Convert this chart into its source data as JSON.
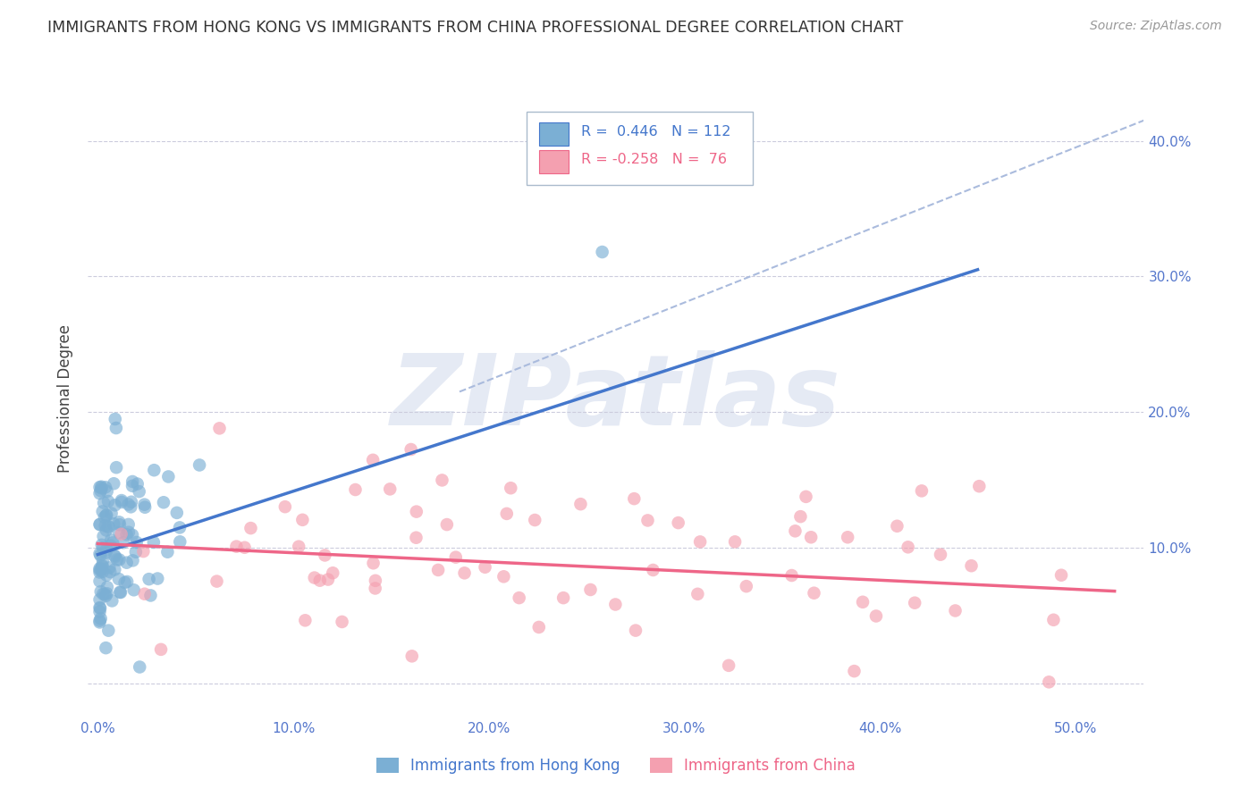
{
  "title": "IMMIGRANTS FROM HONG KONG VS IMMIGRANTS FROM CHINA PROFESSIONAL DEGREE CORRELATION CHART",
  "source": "Source: ZipAtlas.com",
  "ylabel": "Professional Degree",
  "xlim": [
    -0.005,
    0.535
  ],
  "ylim": [
    -0.025,
    0.445
  ],
  "hk_R": 0.446,
  "hk_N": 112,
  "china_R": -0.258,
  "china_N": 76,
  "hk_color": "#7BAFD4",
  "china_color": "#F4A0B0",
  "hk_line_color": "#4477CC",
  "china_line_color": "#EE6688",
  "hk_line_x": [
    0.0,
    0.45
  ],
  "hk_line_y": [
    0.095,
    0.305
  ],
  "china_line_x": [
    0.0,
    0.52
  ],
  "china_line_y": [
    0.103,
    0.068
  ],
  "dash_line_x": [
    0.185,
    0.535
  ],
  "dash_line_y": [
    0.215,
    0.415
  ],
  "dash_color": "#AABBDD",
  "watermark": "ZIPatlas",
  "watermark_color": "#AABBDD",
  "legend_label_hk": "Immigrants from Hong Kong",
  "legend_label_china": "Immigrants from China",
  "background_color": "#FFFFFF",
  "grid_color": "#CCCCDD",
  "title_color": "#333333",
  "tick_color": "#5577CC",
  "x_tick_vals": [
    0.0,
    0.1,
    0.2,
    0.3,
    0.4,
    0.5
  ],
  "x_tick_labels": [
    "0.0%",
    "10.0%",
    "20.0%",
    "30.0%",
    "40.0%",
    "50.0%"
  ],
  "y_tick_vals": [
    0.0,
    0.1,
    0.2,
    0.3,
    0.4
  ],
  "y_tick_labels_right": [
    "",
    "10.0%",
    "20.0%",
    "30.0%",
    "40.0%"
  ]
}
